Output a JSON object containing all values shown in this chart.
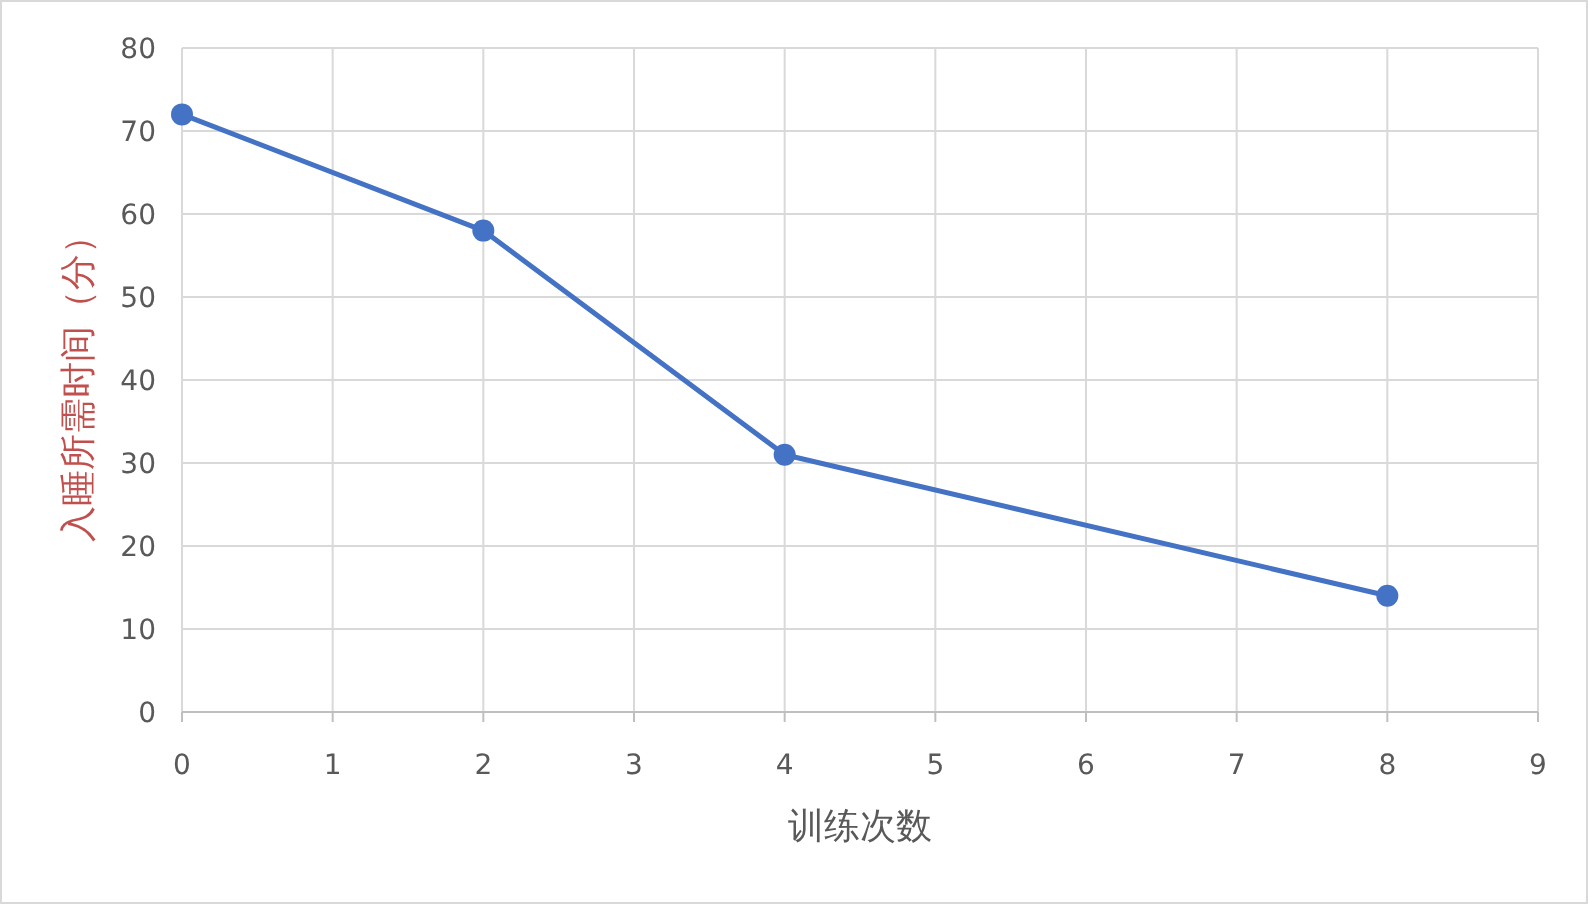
{
  "chart_data": {
    "type": "line",
    "xlabel": "训练次数",
    "ylabel": "入睡所需时间（分）",
    "x": [
      0,
      2,
      4,
      8
    ],
    "series": [
      {
        "color": "#4472c4",
        "values": [
          72,
          58,
          31,
          14
        ]
      }
    ],
    "xlim": [
      0,
      9
    ],
    "xticks": [
      0,
      1,
      2,
      3,
      4,
      5,
      6,
      7,
      8,
      9
    ],
    "ylim": [
      0,
      80
    ],
    "yticks": [
      0,
      10,
      20,
      30,
      40,
      50,
      60,
      70,
      80
    ],
    "grid": true,
    "marker": "circle",
    "line_style": "solid"
  }
}
